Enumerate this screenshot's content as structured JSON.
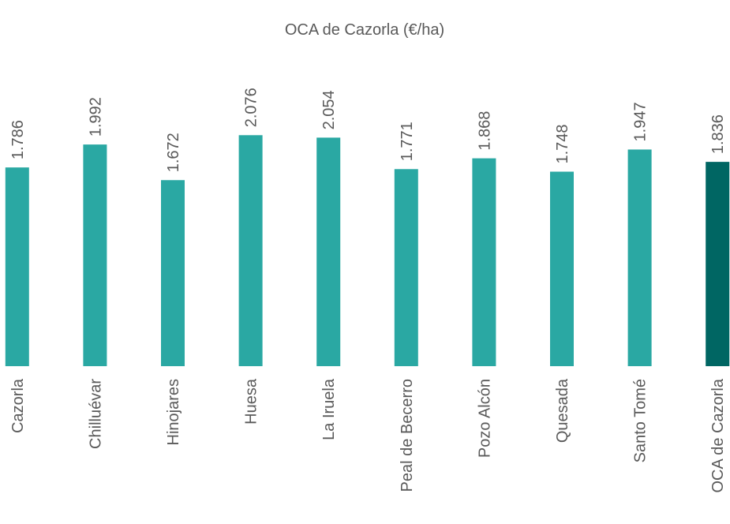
{
  "chart_data": {
    "type": "bar",
    "title": "OCA de Cazorla (€/ha)",
    "categories": [
      "Cazorla",
      "Chilluévar",
      "Hinojares",
      "Huesa",
      "La Iruela",
      "Peal de Becerro",
      "Pozo Alcón",
      "Quesada",
      "Santo Tomé",
      "OCA de Cazorla"
    ],
    "values": [
      1786,
      1992,
      1672,
      2076,
      2054,
      1771,
      1868,
      1748,
      1947,
      1836
    ],
    "value_labels": [
      "1.786",
      "1.992",
      "1.672",
      "2.076",
      "2.054",
      "1.771",
      "1.868",
      "1.748",
      "1.947",
      "1.836"
    ],
    "colors": [
      "#2aa8a3",
      "#2aa8a3",
      "#2aa8a3",
      "#2aa8a3",
      "#2aa8a3",
      "#2aa8a3",
      "#2aa8a3",
      "#2aa8a3",
      "#2aa8a3",
      "#006663"
    ],
    "ylim": [
      0,
      3000
    ]
  }
}
